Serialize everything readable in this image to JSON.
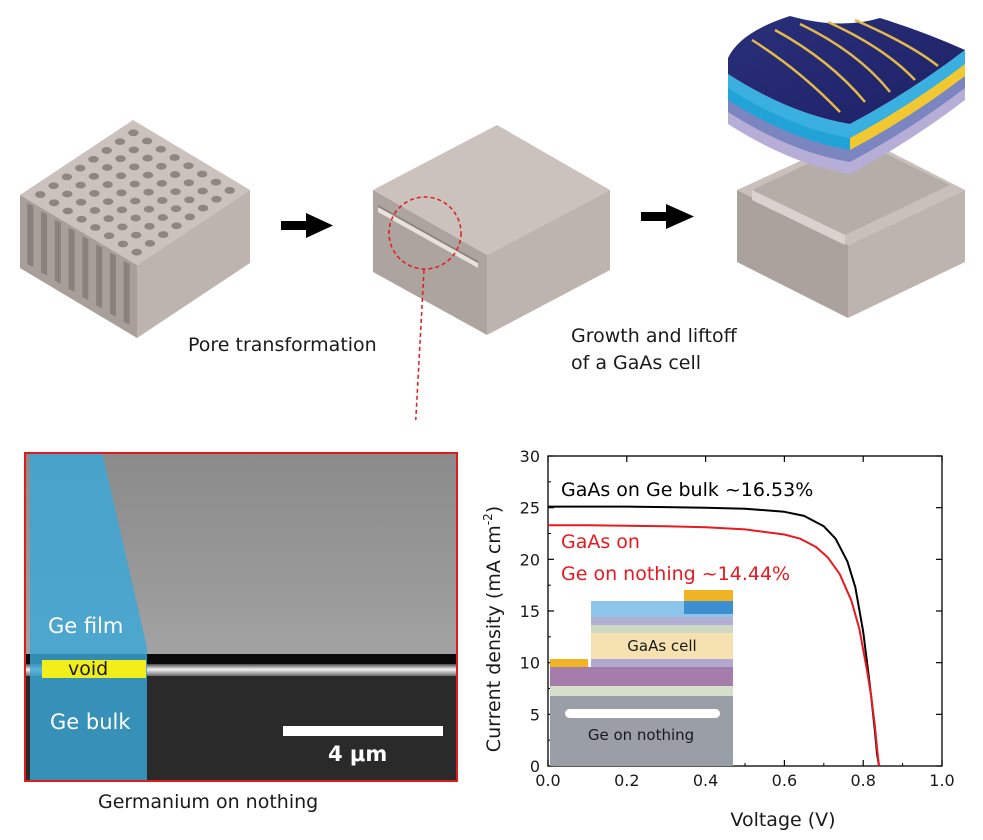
{
  "captions": {
    "pore": "Pore transformation",
    "growth_line1": "Growth and liftoff",
    "growth_line2": "of a GaAs cell",
    "sem": "Germanium on nothing"
  },
  "sem": {
    "ge_film": "Ge film",
    "void": "void",
    "ge_bulk": "Ge bulk",
    "scale_bar": "4 μm"
  },
  "inset": {
    "cell_label": "GaAs cell",
    "substrate_label": "Ge on nothing"
  },
  "colors": {
    "ge_bulk_curve": "#000000",
    "ge_nothing_curve": "#e8191f",
    "sem_frame": "#e01b1b",
    "overlay": "#3aa7d8",
    "void": "#f2ee1a"
  },
  "chart_data": {
    "type": "line",
    "xlabel": "Voltage (V)",
    "ylabel": "Current density (mA cm",
    "ylabel_sup": "-2",
    "ylabel_close": ")",
    "xlim": [
      0.0,
      1.0
    ],
    "ylim": [
      0,
      30
    ],
    "x_ticks": [
      "0.0",
      "0.2",
      "0.4",
      "0.6",
      "0.8",
      "1.0"
    ],
    "y_ticks": [
      "0",
      "5",
      "10",
      "15",
      "20",
      "25",
      "30"
    ],
    "annotations": [
      {
        "text": "GaAs on Ge bulk ~16.53%",
        "color": "#000000"
      },
      {
        "text": "GaAs on",
        "color": "#e8191f"
      },
      {
        "text": "Ge on nothing ~14.44%",
        "color": "#e8191f"
      }
    ],
    "series": [
      {
        "color": "#000000",
        "x": [
          0.0,
          0.1,
          0.2,
          0.3,
          0.4,
          0.5,
          0.6,
          0.65,
          0.7,
          0.73,
          0.76,
          0.78,
          0.8,
          0.81,
          0.82,
          0.83,
          0.835,
          0.84
        ],
        "y": [
          25.1,
          25.1,
          25.1,
          25.05,
          25.0,
          24.9,
          24.6,
          24.2,
          23.2,
          22.0,
          19.8,
          17.3,
          13.0,
          10.0,
          6.8,
          3.3,
          1.2,
          0
        ]
      },
      {
        "color": "#e8191f",
        "x": [
          0.0,
          0.1,
          0.2,
          0.3,
          0.4,
          0.5,
          0.6,
          0.64,
          0.68,
          0.71,
          0.74,
          0.77,
          0.79,
          0.81,
          0.82,
          0.83,
          0.835,
          0.84
        ],
        "y": [
          23.3,
          23.3,
          23.25,
          23.2,
          23.1,
          22.9,
          22.4,
          22.0,
          21.2,
          20.2,
          18.6,
          16.0,
          13.3,
          9.2,
          6.8,
          3.8,
          1.7,
          0
        ]
      }
    ]
  }
}
